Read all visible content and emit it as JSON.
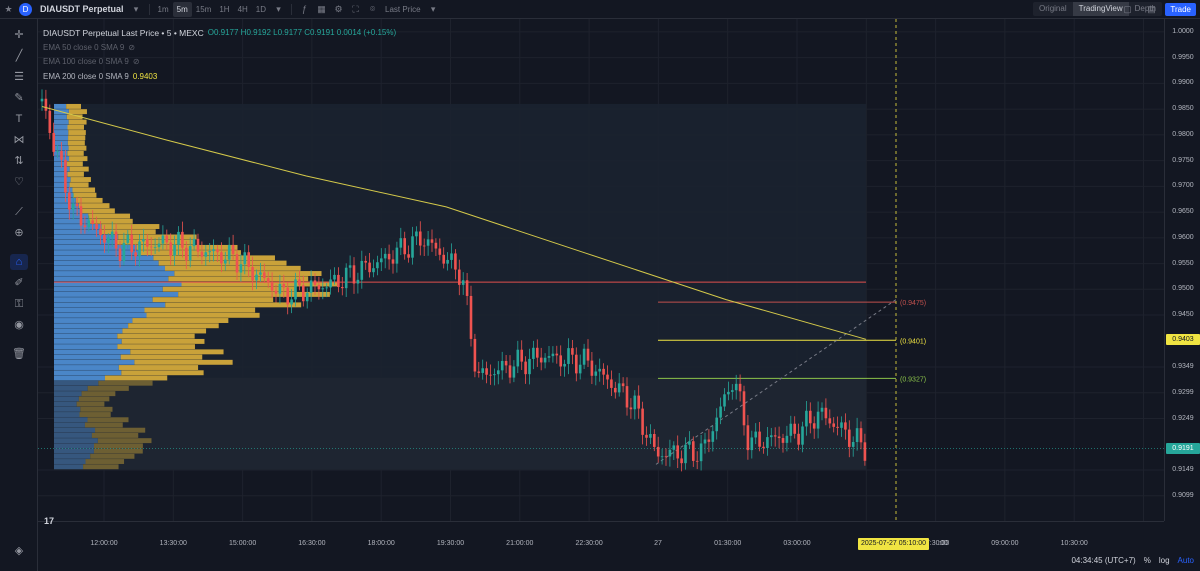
{
  "topbar": {
    "symbol": "DIAUSDT Perpetual",
    "intervals": [
      "1m",
      "5m",
      "15m",
      "1H",
      "4H",
      "1D"
    ],
    "active_interval": "5m",
    "price_source": "Last Price",
    "views": [
      "Original",
      "TradingView",
      "Depth"
    ],
    "active_view": "TradingView",
    "trade_label": "Trade"
  },
  "legend": {
    "title": "DIAUSDT Perpetual Last Price • 5 • MEXC",
    "ohlc": "O0.9177 H0.9192 L0.9177 C0.9191 0.0014 (+0.15%)",
    "ema_lines": [
      {
        "label": "EMA 50 close 0 SMA 9",
        "value": ""
      },
      {
        "label": "EMA 100 close 0 SMA 9",
        "value": ""
      },
      {
        "label": "EMA 200 close 0 SMA 9",
        "value": "0.9403"
      }
    ]
  },
  "price_axis": {
    "ticks": [
      "1.0000",
      "0.9950",
      "0.9900",
      "0.9850",
      "0.9800",
      "0.9750",
      "0.9700",
      "0.9650",
      "0.9600",
      "0.9550",
      "0.9500",
      "0.9450",
      "0.9349",
      "0.9299",
      "0.9249",
      "0.9149",
      "0.9099"
    ],
    "ema_badge": "0.9403",
    "last_price_badge": "0.9191",
    "last_price_color": "#26a69a",
    "ema_color": "#f0e442"
  },
  "time_axis": {
    "ticks": [
      "12:00:00",
      "13:30:00",
      "15:00:00",
      "16:30:00",
      "18:00:00",
      "19:30:00",
      "21:00:00",
      "22:30:00",
      "27",
      "01:30:00",
      "03:00:00",
      ":00",
      "07:30:00",
      "09:00:00",
      "10:30:00"
    ],
    "crosshair_label": "2025-07-27   05:10:00"
  },
  "annotations": {
    "level_upper": "(0.9475)",
    "level_mid": "(0.9401)",
    "level_lower": "(0.9327)"
  },
  "bottombar": {
    "clock": "04:34:45 (UTC+7)",
    "percent": "%",
    "log": "log",
    "auto": "Auto"
  },
  "chart_data": {
    "type": "candlestick",
    "symbol": "DIAUSDT Perpetual",
    "ylim": [
      0.905,
      1.0025
    ],
    "visible_price_level": 0.9191,
    "ema200_last": 0.9403,
    "horizontal_levels": [
      0.9514,
      0.9475,
      0.9401,
      0.9327
    ],
    "close_path": [
      {
        "t": "10:50",
        "p": 0.9865
      },
      {
        "t": "11:30",
        "p": 0.965
      },
      {
        "t": "12:30",
        "p": 0.958
      },
      {
        "t": "13:30",
        "p": 0.959
      },
      {
        "t": "15:00",
        "p": 0.956
      },
      {
        "t": "16:00",
        "p": 0.949
      },
      {
        "t": "17:00",
        "p": 0.951
      },
      {
        "t": "18:00",
        "p": 0.955
      },
      {
        "t": "19:00",
        "p": 0.96
      },
      {
        "t": "19:50",
        "p": 0.953
      },
      {
        "t": "20:10",
        "p": 0.933
      },
      {
        "t": "21:30",
        "p": 0.937
      },
      {
        "t": "22:30",
        "p": 0.936
      },
      {
        "t": "23:30",
        "p": 0.928
      },
      {
        "t": "00:00",
        "p": 0.918
      },
      {
        "t": "01:00",
        "p": 0.9185
      },
      {
        "t": "01:40",
        "p": 0.933
      },
      {
        "t": "02:00",
        "p": 0.92
      },
      {
        "t": "03:00",
        "p": 0.922
      },
      {
        "t": "03:30",
        "p": 0.926
      },
      {
        "t": "04:30",
        "p": 0.9191
      }
    ],
    "ema200_path": [
      {
        "t": "10:50",
        "p": 0.9855
      },
      {
        "t": "13:30",
        "p": 0.979
      },
      {
        "t": "16:30",
        "p": 0.972
      },
      {
        "t": "19:30",
        "p": 0.966
      },
      {
        "t": "22:30",
        "p": 0.957
      },
      {
        "t": "01:30",
        "p": 0.948
      },
      {
        "t": "04:30",
        "p": 0.9403
      }
    ]
  }
}
